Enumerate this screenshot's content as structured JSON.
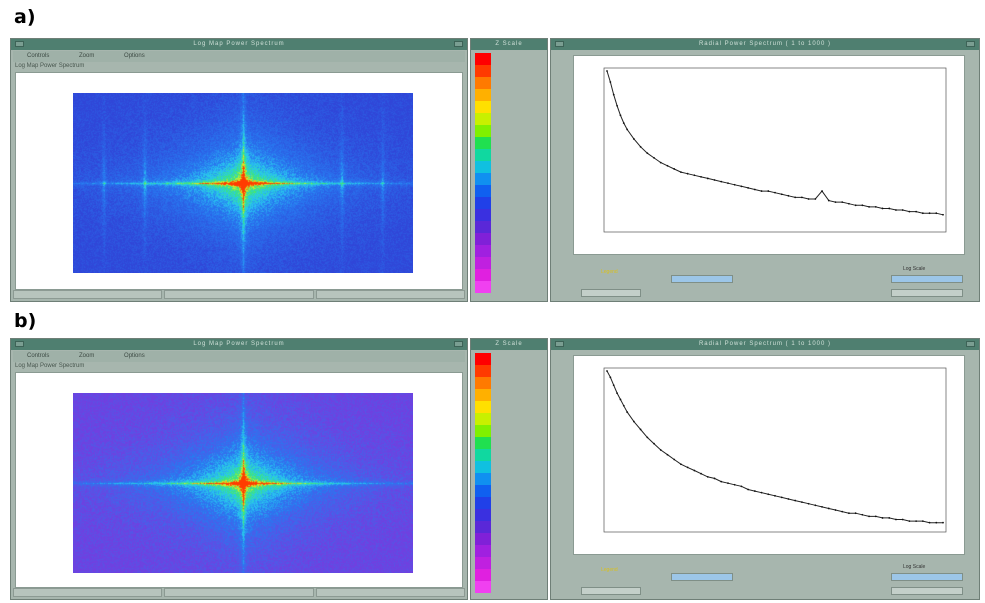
{
  "figure": {
    "labels": [
      "a)",
      "b)"
    ]
  },
  "panels": [
    {
      "id": "a",
      "map_window": {
        "title": "Log Map Power Spectrum",
        "menu": [
          "Controls",
          "Zoom",
          "Options"
        ],
        "subtitle": "Log Map Power Spectrum"
      },
      "scale_window": {
        "title": "Z Scale"
      },
      "profile_window": {
        "title": "Radial Power Spectrum ( 1 to 1000 )",
        "legend_label": "Legend",
        "toggle_label": "Log Scale"
      },
      "heatmap": {
        "background_color": "#3046d8",
        "spikes": true
      }
    },
    {
      "id": "b",
      "map_window": {
        "title": "Log Map Power Spectrum",
        "menu": [
          "Controls",
          "Zoom",
          "Options"
        ],
        "subtitle": "Log Map Power Spectrum"
      },
      "scale_window": {
        "title": "Z Scale"
      },
      "profile_window": {
        "title": "Radial Power Spectrum ( 1 to 1000 )",
        "legend_label": "Legend",
        "toggle_label": "Log Scale"
      },
      "heatmap": {
        "background_color": "#7040e0",
        "spikes": false
      }
    }
  ],
  "colors": {
    "scale": [
      "#ff0000",
      "#ff3a00",
      "#ff7a00",
      "#ffb000",
      "#ffe000",
      "#c8f000",
      "#80f000",
      "#20e050",
      "#10d8a0",
      "#10c0e0",
      "#1090f0",
      "#1060f0",
      "#2040e8",
      "#3a30e0",
      "#5a28d8",
      "#8020d8",
      "#a020e0",
      "#c020e0",
      "#e020e0",
      "#f040f0"
    ],
    "titlebar": "#4f7f70",
    "chrome": "#a7b6ae"
  },
  "chart_data": [
    {
      "type": "line",
      "title": "",
      "xlabel": "",
      "ylabel": "",
      "xlim": [
        0,
        100
      ],
      "ylim": [
        0,
        100
      ],
      "grid": false,
      "series": [
        {
          "x": [
            0,
            1,
            2,
            3,
            4,
            5,
            6,
            8,
            10,
            12,
            14,
            16,
            18,
            20,
            22,
            24,
            26,
            28,
            30,
            32,
            34,
            36,
            38,
            40,
            42,
            44,
            46,
            48,
            50,
            52,
            54,
            56,
            58,
            60,
            62,
            64,
            66,
            68,
            70,
            72,
            74,
            76,
            78,
            80,
            82,
            84,
            86,
            88,
            90,
            92,
            94,
            96,
            98,
            100
          ],
          "y": [
            100,
            93,
            85,
            78,
            72,
            67,
            63,
            57,
            52,
            48,
            45,
            42,
            40,
            38,
            36,
            35,
            34,
            33,
            32,
            31,
            30,
            29,
            28,
            27,
            26,
            25,
            24,
            24,
            23,
            22,
            21,
            20,
            20,
            19,
            19,
            24,
            18,
            17,
            17,
            16,
            15,
            15,
            14,
            14,
            13,
            13,
            12,
            12,
            11,
            11,
            10,
            10,
            10,
            9
          ]
        }
      ]
    },
    {
      "type": "line",
      "title": "",
      "xlabel": "",
      "ylabel": "",
      "xlim": [
        0,
        100
      ],
      "ylim": [
        0,
        100
      ],
      "grid": false,
      "series": [
        {
          "x": [
            0,
            1,
            2,
            3,
            4,
            5,
            6,
            8,
            10,
            12,
            14,
            16,
            18,
            20,
            22,
            24,
            26,
            28,
            30,
            32,
            34,
            36,
            38,
            40,
            42,
            44,
            46,
            48,
            50,
            52,
            54,
            56,
            58,
            60,
            62,
            64,
            66,
            68,
            70,
            72,
            74,
            76,
            78,
            80,
            82,
            84,
            86,
            88,
            90,
            92,
            94,
            96,
            98,
            100
          ],
          "y": [
            100,
            96,
            91,
            86,
            82,
            78,
            74,
            68,
            63,
            58,
            54,
            50,
            47,
            44,
            41,
            39,
            37,
            35,
            33,
            32,
            30,
            29,
            28,
            27,
            25,
            24,
            23,
            22,
            21,
            20,
            19,
            18,
            17,
            16,
            15,
            14,
            13,
            12,
            11,
            10,
            10,
            9,
            8,
            8,
            7,
            7,
            6,
            6,
            5,
            5,
            5,
            4,
            4,
            4
          ]
        }
      ]
    }
  ]
}
